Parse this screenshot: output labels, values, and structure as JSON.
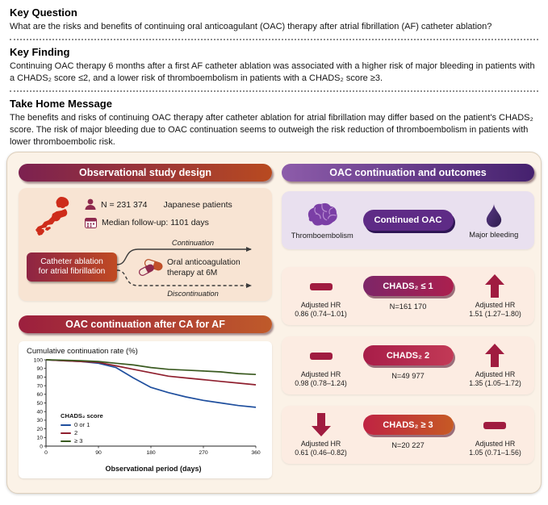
{
  "sections": {
    "key_question": {
      "title": "Key Question",
      "text": "What are the risks and benefits of continuing oral anticoagulant (OAC) therapy after atrial fibrillation (AF) catheter ablation?"
    },
    "key_finding": {
      "title": "Key Finding",
      "text": "Continuing OAC therapy 6 months after a first AF catheter ablation was associated with a higher risk of major bleeding in patients with a CHADS₂ score ≤2, and a lower risk of thromboembolism in patients with a CHADS₂ score ≥3."
    },
    "take_home_message": {
      "title": "Take Home Message",
      "text": "The benefits and risks of continuing OAC therapy after catheter ablation for atrial fibrillation may differ based on the patient's CHADS₂ score. The risk of major bleeding due to OAC continuation seems to outweigh the risk reduction of thromboembolism in patients with lower thromboembolic risk."
    }
  },
  "study_design": {
    "title": "Observational study design",
    "n_value": "N = 231 374",
    "n_label": "Japanese patients",
    "followup": "Median follow-up: 1101 days",
    "ablation_line1": "Catheter ablation",
    "ablation_line2": "for atrial fibrillation",
    "oac_line1": "Oral anticoagulation",
    "oac_line2": "therapy at 6M",
    "continuation_label": "Continuation",
    "discontinuation_label": "Discontinuation"
  },
  "continuation_panel": {
    "title": "OAC continuation after CA for AF",
    "chart_title": "Cumulative continuation rate (%)",
    "x_label": "Observational period (days)"
  },
  "outcomes": {
    "title": "OAC continuation and outcomes",
    "thromboembolism_label": "Thromboembolism",
    "continued_oac_label": "Continued OAC",
    "major_bleeding_label": "Major bleeding",
    "adjusted_hr_label": "Adjusted HR",
    "rows": [
      {
        "chads_label": "CHADS₂ ≤ 1",
        "n": "N=161 170",
        "te_hr": "0.86 (0.74–1.01)",
        "te_direction": "neutral",
        "mb_hr": "1.51 (1.27–1.80)",
        "mb_direction": "up"
      },
      {
        "chads_label": "CHADS₂ 2",
        "n": "N=49 977",
        "te_hr": "0.98 (0.78–1.24)",
        "te_direction": "neutral",
        "mb_hr": "1.35 (1.05–1.72)",
        "mb_direction": "up"
      },
      {
        "chads_label": "CHADS₂ ≥ 3",
        "n": "N=20 227",
        "te_hr": "0.61 (0.46–0.82)",
        "te_direction": "down",
        "mb_hr": "1.05 (0.71–1.56)",
        "mb_direction": "neutral"
      }
    ]
  },
  "chart_data": {
    "type": "line",
    "title": "Cumulative continuation rate (%)",
    "xlabel": "Observational period (days)",
    "ylabel": "Cumulative continuation rate (%)",
    "xlim": [
      0,
      360
    ],
    "ylim": [
      0,
      100
    ],
    "xticks": [
      0,
      90,
      180,
      270,
      360
    ],
    "yticks": [
      0,
      10,
      20,
      30,
      40,
      50,
      60,
      70,
      80,
      90,
      100
    ],
    "grid": false,
    "legend_title": "CHADS₂ score",
    "legend_position": "lower-left-inside",
    "x": [
      0,
      30,
      60,
      90,
      120,
      150,
      180,
      210,
      240,
      270,
      300,
      330,
      360
    ],
    "series": [
      {
        "name": "0 or 1",
        "color": "#1f4f9e",
        "values": [
          100,
          99,
          98,
          96,
          91,
          79,
          68,
          62,
          57,
          53,
          50,
          47,
          45
        ]
      },
      {
        "name": "2",
        "color": "#8f1f2e",
        "values": [
          100,
          99,
          98,
          97,
          93,
          89,
          85,
          81,
          79,
          77,
          75,
          73,
          71
        ]
      },
      {
        "name": "≥ 3",
        "color": "#3a5a20",
        "values": [
          100,
          99.5,
          99,
          98,
          96,
          94,
          91,
          89,
          88,
          87,
          86,
          84,
          83
        ]
      }
    ]
  }
}
